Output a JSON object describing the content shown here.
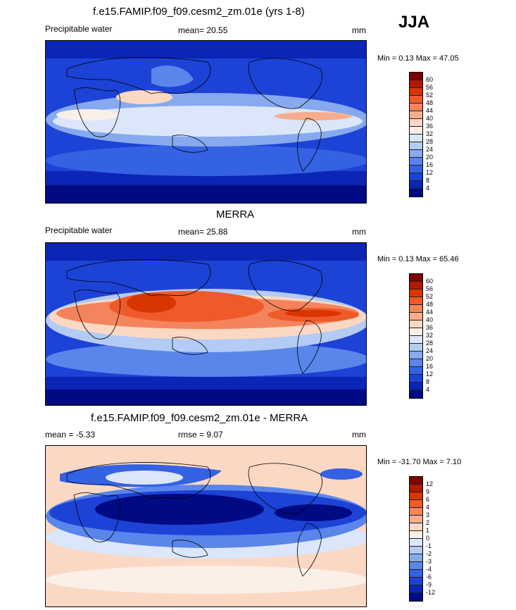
{
  "season": "JJA",
  "panels": [
    {
      "id": "model",
      "title": "f.e15.FAMIP.f09_f09.cesm2_zm.01e (yrs 1-8)",
      "left_label": "Precipitable water",
      "center_label": "mean=  20.55",
      "right_label": "mm",
      "minmax": "Min =   0.13 Max =  47.05",
      "colorbar": {
        "colors": [
          "#7f0000",
          "#b01a00",
          "#d93500",
          "#ef5a2a",
          "#f4845c",
          "#f7ad8d",
          "#fad8c4",
          "#fbf0e8",
          "#dbe6fb",
          "#b3cbf5",
          "#86a9ef",
          "#5a85ea",
          "#3562e3",
          "#1d42d6",
          "#0b25b5",
          "#000a82"
        ],
        "ticks": [
          "60",
          "56",
          "52",
          "48",
          "44",
          "40",
          "36",
          "32",
          "28",
          "24",
          "20",
          "16",
          "12",
          "8",
          "4"
        ]
      }
    },
    {
      "id": "obs",
      "title": "MERRA",
      "left_label": "Precipitable water",
      "center_label": "mean=  25.88",
      "right_label": "mm",
      "minmax": "Min =   0.13 Max =  65.46",
      "colorbar": {
        "colors": [
          "#7f0000",
          "#b01a00",
          "#d93500",
          "#ef5a2a",
          "#f4845c",
          "#f7ad8d",
          "#fad8c4",
          "#fbf0e8",
          "#dbe6fb",
          "#b3cbf5",
          "#86a9ef",
          "#5a85ea",
          "#3562e3",
          "#1d42d6",
          "#0b25b5",
          "#000a82"
        ],
        "ticks": [
          "60",
          "56",
          "52",
          "48",
          "44",
          "40",
          "36",
          "32",
          "28",
          "24",
          "20",
          "16",
          "12",
          "8",
          "4"
        ]
      }
    },
    {
      "id": "diff",
      "title": "f.e15.FAMIP.f09_f09.cesm2_zm.01e - MERRA",
      "left_label": "mean =  -5.33",
      "center_label": "rmse =   9.07",
      "right_label": "mm",
      "minmax": "Min = -31.70 Max =   7.10",
      "colorbar": {
        "colors": [
          "#7f0000",
          "#b01a00",
          "#d93500",
          "#ef5a2a",
          "#f4845c",
          "#f7ad8d",
          "#fad8c4",
          "#fbf0e8",
          "#dbe6fb",
          "#b3cbf5",
          "#86a9ef",
          "#5a85ea",
          "#3562e3",
          "#1d42d6",
          "#0b25b5",
          "#000a82"
        ],
        "ticks": [
          "12",
          "9",
          "6",
          "4",
          "3",
          "2",
          "1",
          "0",
          "-1",
          "-2",
          "-3",
          "-4",
          "-6",
          "-9",
          "-12"
        ]
      }
    }
  ],
  "chart_data": [
    {
      "type": "heatmap",
      "title": "f.e15.FAMIP.f09_f09.cesm2_zm.01e (yrs 1-8)",
      "field": "Precipitable water",
      "units": "mm",
      "mean": 20.55,
      "min": 0.13,
      "max": 47.05,
      "contour_levels": [
        4,
        8,
        12,
        16,
        20,
        24,
        28,
        32,
        36,
        40,
        44,
        48,
        52,
        56,
        60
      ]
    },
    {
      "type": "heatmap",
      "title": "MERRA",
      "field": "Precipitable water",
      "units": "mm",
      "mean": 25.88,
      "min": 0.13,
      "max": 65.46,
      "contour_levels": [
        4,
        8,
        12,
        16,
        20,
        24,
        28,
        32,
        36,
        40,
        44,
        48,
        52,
        56,
        60
      ]
    },
    {
      "type": "heatmap",
      "title": "f.e15.FAMIP.f09_f09.cesm2_zm.01e - MERRA",
      "units": "mm",
      "mean": -5.33,
      "rmse": 9.07,
      "min": -31.7,
      "max": 7.1,
      "contour_levels": [
        -12,
        -9,
        -6,
        -4,
        -3,
        -2,
        -1,
        0,
        1,
        2,
        3,
        4,
        6,
        9,
        12
      ]
    }
  ]
}
